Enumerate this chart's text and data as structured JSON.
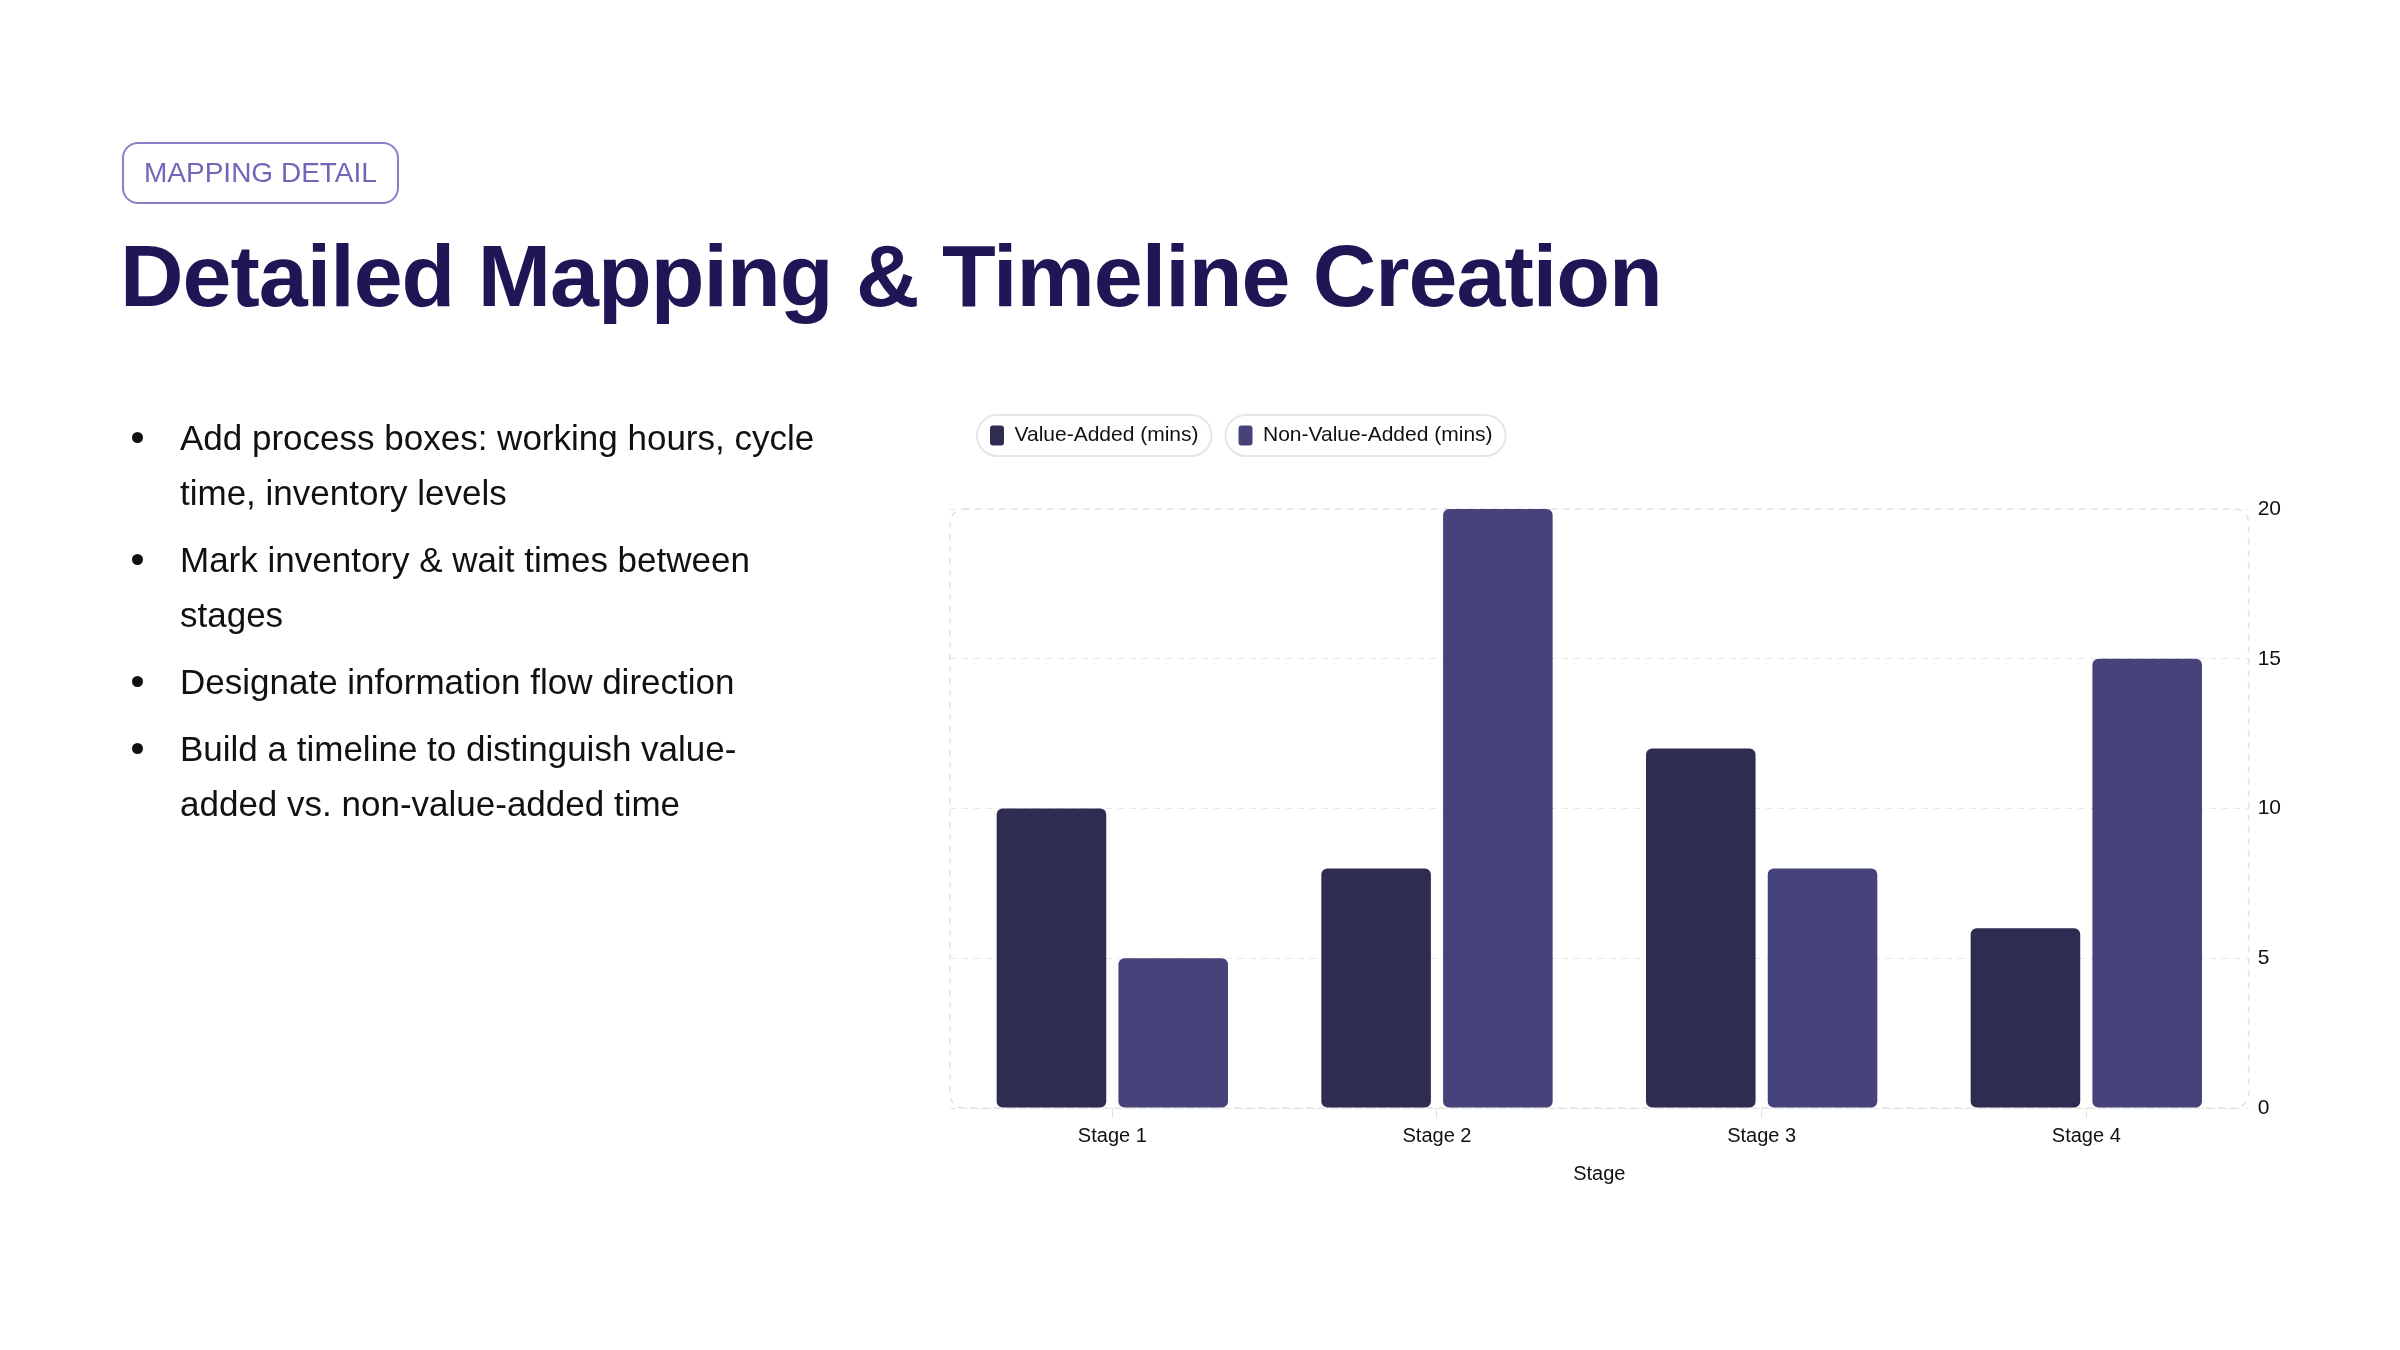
{
  "chart_data": {
    "type": "bar",
    "title": "Detailed Mapping & Timeline Creation",
    "subtitle": "MAPPING DETAIL",
    "annotations": [
      "Add process boxes: working hours, cycle time, inventory levels",
      "Mark inventory & wait times between stages",
      "Designate information flow direction",
      "Build a timeline to distinguish value-added vs. non-value-added time"
    ],
    "xlabel": "Stage",
    "categories": [
      "Stage 1",
      "Stage 2",
      "Stage 3",
      "Stage 4"
    ],
    "series": [
      {
        "name": "Value-Added (mins)",
        "color": "#2f2c51",
        "values": [
          10,
          8,
          12,
          6
        ]
      },
      {
        "name": "Non-Value-Added (mins)",
        "color": "#46427a",
        "values": [
          5,
          20,
          8,
          15
        ]
      }
    ],
    "ylim": [
      0,
      20
    ],
    "yticks": [
      0,
      5,
      10,
      15,
      20
    ],
    "grid": "y",
    "legend": "top left"
  }
}
